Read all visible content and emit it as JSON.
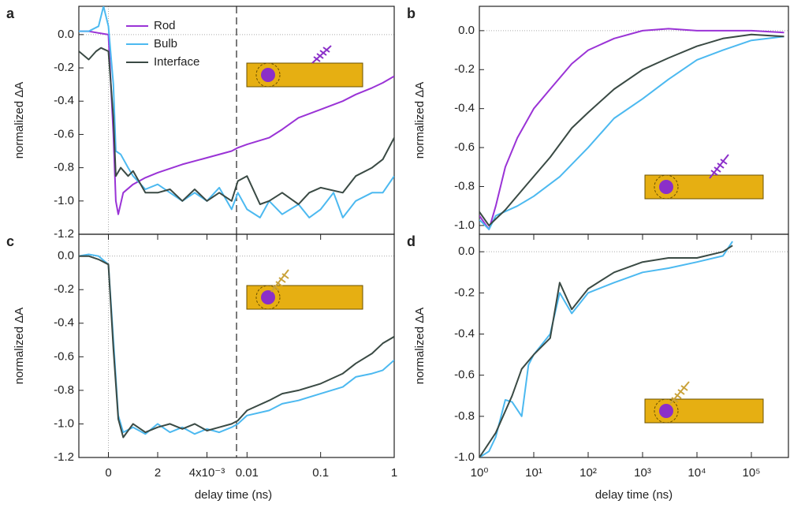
{
  "chart_data": [
    {
      "type": "line",
      "panel": "a",
      "ylabel": "normalized ΔA",
      "xlim": [
        -0.0012,
        1
      ],
      "xbreak": [
        0.0052,
        0.0072
      ],
      "xlog": true,
      "ylim": [
        -1.2,
        0.17
      ],
      "yticks": [
        {
          "value": 0,
          "label": "0.0"
        },
        -0.2,
        -0.4,
        -0.6,
        -0.8,
        {
          "value": -1,
          "label": "-1.0"
        },
        -1.2
      ],
      "legend": true,
      "series": [
        {
          "name": "Rod",
          "color": "#9a33d6",
          "x": [
            -0.0012,
            -0.0008,
            -0.0004,
            0,
            0.0002,
            0.0003,
            0.0004,
            0.0006,
            0.001,
            0.0015,
            0.002,
            0.003,
            0.004,
            0.005,
            0.0075,
            0.01,
            0.02,
            0.03,
            0.05,
            0.1,
            0.2,
            0.3,
            0.5,
            0.7,
            1
          ],
          "values": [
            0.02,
            0.02,
            0.01,
            0,
            -0.6,
            -1.0,
            -1.08,
            -0.95,
            -0.9,
            -0.86,
            -0.83,
            -0.78,
            -0.74,
            -0.7,
            -0.68,
            -0.66,
            -0.62,
            -0.57,
            -0.5,
            -0.45,
            -0.4,
            -0.36,
            -0.32,
            -0.29,
            -0.25
          ]
        },
        {
          "name": "Bulb",
          "color": "#4cb9f0",
          "x": [
            -0.0012,
            -0.0008,
            -0.0004,
            -0.0002,
            0,
            0.0002,
            0.0003,
            0.0005,
            0.0008,
            0.001,
            0.0015,
            0.002,
            0.0025,
            0.003,
            0.0035,
            0.004,
            0.0045,
            0.005,
            0.0075,
            0.01,
            0.015,
            0.02,
            0.03,
            0.05,
            0.07,
            0.1,
            0.15,
            0.2,
            0.3,
            0.5,
            0.7,
            1
          ],
          "values": [
            0.02,
            0.02,
            0.05,
            0.17,
            0.05,
            -0.3,
            -0.7,
            -0.72,
            -0.8,
            -0.85,
            -0.93,
            -0.9,
            -0.95,
            -1.0,
            -0.95,
            -1.0,
            -0.92,
            -1.05,
            -0.95,
            -1.05,
            -1.1,
            -1.0,
            -1.08,
            -1.02,
            -1.1,
            -1.05,
            -0.95,
            -1.1,
            -1.0,
            -0.95,
            -0.95,
            -0.85
          ]
        },
        {
          "name": "Interface",
          "color": "#3a4a44",
          "x": [
            -0.0012,
            -0.0008,
            -0.0005,
            -0.0003,
            0,
            0.0002,
            0.0003,
            0.0005,
            0.0008,
            0.001,
            0.0015,
            0.002,
            0.0025,
            0.003,
            0.0035,
            0.004,
            0.0045,
            0.005,
            0.0075,
            0.01,
            0.015,
            0.02,
            0.03,
            0.05,
            0.07,
            0.1,
            0.2,
            0.3,
            0.5,
            0.7,
            1
          ],
          "values": [
            -0.1,
            -0.15,
            -0.1,
            -0.08,
            -0.1,
            -0.5,
            -0.85,
            -0.8,
            -0.85,
            -0.82,
            -0.95,
            -0.95,
            -0.93,
            -1.0,
            -0.93,
            -1.0,
            -0.95,
            -1.0,
            -0.88,
            -0.85,
            -1.02,
            -1.0,
            -0.95,
            -1.02,
            -0.95,
            -0.92,
            -0.95,
            -0.85,
            -0.8,
            -0.75,
            -0.62
          ]
        }
      ]
    },
    {
      "type": "line",
      "panel": "b",
      "ylabel": "normalized ΔA",
      "xlim": [
        1,
        480000
      ],
      "xlog": true,
      "ylim": [
        -1.045,
        0.125
      ],
      "yticks": [
        {
          "value": 0,
          "label": "0.0"
        },
        -0.2,
        -0.4,
        -0.6,
        -0.8,
        {
          "value": -1,
          "label": "-1.0"
        }
      ],
      "legend": false,
      "series": [
        {
          "name": "Rod",
          "color": "#9a33d6",
          "x": [
            1,
            1.5,
            2,
            3,
            5,
            10,
            20,
            50,
            100,
            300,
            1000,
            3000,
            10000,
            100000,
            400000
          ],
          "values": [
            -0.95,
            -1.02,
            -0.9,
            -0.7,
            -0.55,
            -0.4,
            -0.3,
            -0.17,
            -0.1,
            -0.04,
            0.0,
            0.01,
            0.0,
            0.0,
            -0.01
          ]
        },
        {
          "name": "Bulb",
          "color": "#4cb9f0",
          "x": [
            1,
            1.5,
            2,
            5,
            10,
            30,
            100,
            300,
            1000,
            3000,
            10000,
            30000,
            100000,
            400000
          ],
          "values": [
            -0.97,
            -1.02,
            -0.95,
            -0.9,
            -0.85,
            -0.75,
            -0.6,
            -0.45,
            -0.35,
            -0.25,
            -0.15,
            -0.1,
            -0.05,
            -0.03
          ]
        },
        {
          "name": "Interface",
          "color": "#3a4a44",
          "x": [
            1,
            1.5,
            3,
            8,
            20,
            50,
            100,
            300,
            1000,
            3000,
            10000,
            30000,
            100000,
            400000
          ],
          "values": [
            -0.93,
            -1.0,
            -0.92,
            -0.78,
            -0.65,
            -0.5,
            -0.42,
            -0.3,
            -0.2,
            -0.14,
            -0.08,
            -0.04,
            -0.02,
            -0.03
          ]
        }
      ]
    },
    {
      "type": "line",
      "panel": "c",
      "ylabel": "normalized ΔA",
      "xlabel": "delay time (ns)",
      "xlim": [
        -0.0012,
        1
      ],
      "xbreak": [
        0.0052,
        0.0072
      ],
      "xlog": true,
      "xticks": [
        0,
        {
          "value": 0.002,
          "label": "2"
        },
        {
          "value": 0.004,
          "label": "4x10⁻³"
        },
        0.01,
        0.1,
        1
      ],
      "ylim": [
        -1.2,
        0.13
      ],
      "yticks": [
        {
          "value": 0,
          "label": "0.0"
        },
        -0.2,
        -0.4,
        -0.6,
        -0.8,
        {
          "value": -1,
          "label": "-1.0"
        },
        -1.2
      ],
      "legend": false,
      "series": [
        {
          "name": "Bulb",
          "color": "#4cb9f0",
          "x": [
            -0.0012,
            -0.0008,
            -0.0004,
            0,
            0.0002,
            0.0004,
            0.0006,
            0.001,
            0.0015,
            0.002,
            0.0025,
            0.003,
            0.0035,
            0.004,
            0.0045,
            0.005,
            0.0075,
            0.01,
            0.02,
            0.03,
            0.05,
            0.1,
            0.2,
            0.3,
            0.5,
            0.7,
            1
          ],
          "values": [
            0.0,
            0.01,
            0.0,
            -0.05,
            -0.5,
            -0.95,
            -1.05,
            -1.02,
            -1.06,
            -1.0,
            -1.05,
            -1.02,
            -1.06,
            -1.03,
            -1.05,
            -1.02,
            -1.0,
            -0.95,
            -0.92,
            -0.88,
            -0.86,
            -0.82,
            -0.78,
            -0.72,
            -0.7,
            -0.68,
            -0.62
          ]
        },
        {
          "name": "Interface",
          "color": "#3a4a44",
          "x": [
            -0.0012,
            -0.0008,
            -0.0004,
            0,
            0.0002,
            0.0004,
            0.0006,
            0.001,
            0.0015,
            0.002,
            0.0025,
            0.003,
            0.0035,
            0.004,
            0.0045,
            0.005,
            0.0075,
            0.01,
            0.02,
            0.03,
            0.05,
            0.1,
            0.2,
            0.3,
            0.5,
            0.7,
            1
          ],
          "values": [
            0.0,
            0.0,
            -0.02,
            -0.05,
            -0.55,
            -0.97,
            -1.08,
            -1.0,
            -1.05,
            -1.02,
            -1.0,
            -1.03,
            -1.0,
            -1.04,
            -1.02,
            -1.0,
            -0.98,
            -0.92,
            -0.86,
            -0.82,
            -0.8,
            -0.76,
            -0.7,
            -0.64,
            -0.58,
            -0.52,
            -0.48
          ]
        }
      ]
    },
    {
      "type": "line",
      "panel": "d",
      "ylabel": "normalized ΔA",
      "xlabel": "delay time (ns)",
      "xlim": [
        1,
        480000
      ],
      "xlog": true,
      "xticks": [
        {
          "value": 1,
          "label": "10⁰"
        },
        {
          "value": 10,
          "label": "10¹"
        },
        {
          "value": 100,
          "label": "10²"
        },
        {
          "value": 1000,
          "label": "10³"
        },
        {
          "value": 10000,
          "label": "10⁴"
        },
        {
          "value": 100000,
          "label": "10⁵"
        }
      ],
      "ylim": [
        -1.0,
        0.085
      ],
      "yticks": [
        {
          "value": 0,
          "label": "0.0"
        },
        -0.2,
        -0.4,
        -0.6,
        -0.8,
        {
          "value": -1,
          "label": "-1.0"
        }
      ],
      "legend": false,
      "series": [
        {
          "name": "Bulb",
          "color": "#4cb9f0",
          "x": [
            1,
            1.5,
            2,
            3,
            4,
            6,
            8,
            10,
            20,
            30,
            50,
            100,
            300,
            1000,
            3000,
            10000,
            30000,
            45000
          ],
          "values": [
            -1.0,
            -0.97,
            -0.9,
            -0.72,
            -0.73,
            -0.8,
            -0.55,
            -0.5,
            -0.4,
            -0.2,
            -0.3,
            -0.2,
            -0.15,
            -0.1,
            -0.08,
            -0.05,
            -0.02,
            0.05
          ]
        },
        {
          "name": "Interface",
          "color": "#3a4a44",
          "x": [
            1,
            2,
            4,
            6,
            10,
            20,
            30,
            50,
            100,
            300,
            1000,
            3000,
            10000,
            30000,
            45000
          ],
          "values": [
            -1.0,
            -0.88,
            -0.7,
            -0.57,
            -0.5,
            -0.42,
            -0.15,
            -0.28,
            -0.18,
            -0.1,
            -0.05,
            -0.03,
            -0.03,
            0.0,
            0.03
          ]
        }
      ]
    }
  ]
}
